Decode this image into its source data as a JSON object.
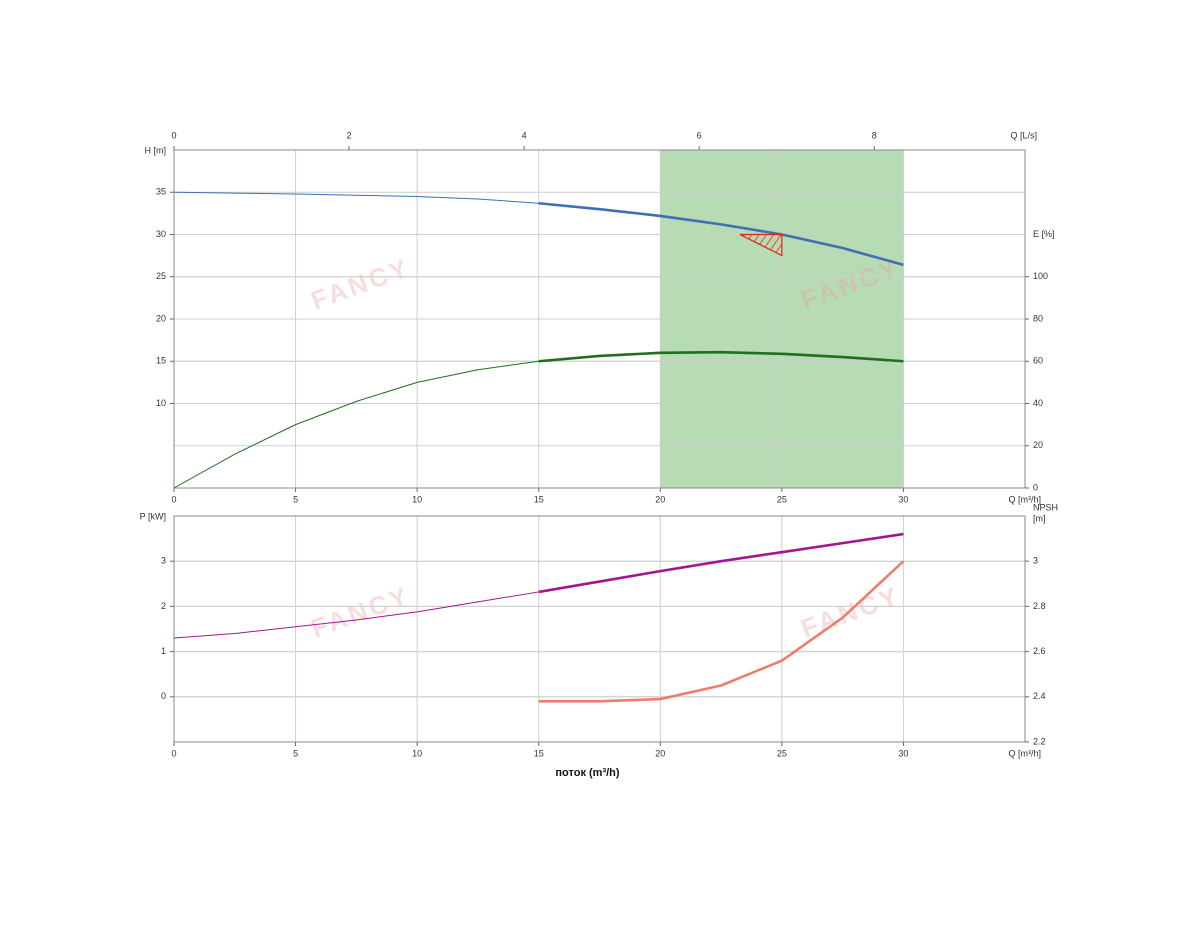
{
  "chart_data": [
    {
      "type": "line",
      "ylabel": "H [m]",
      "y2label": [
        "E [%]"
      ],
      "xunit": "Q [m³/h]",
      "x2unit": "Q [L/s]",
      "x": [
        0,
        2.5,
        5,
        7.5,
        10,
        12.5,
        15,
        17.5,
        20,
        22.5,
        25,
        27.5,
        30
      ],
      "xlim": [
        0,
        35
      ],
      "xticks": [
        0,
        5,
        10,
        15,
        20,
        25,
        30
      ],
      "x2lim": [
        0,
        9.7222
      ],
      "x2ticks": [
        0,
        2,
        4,
        6,
        8
      ],
      "ylim": [
        0,
        40
      ],
      "yticks": [
        10,
        15,
        20,
        25,
        30,
        35
      ],
      "y2lim": [
        0,
        160
      ],
      "y2ticks": [
        0,
        20,
        40,
        60,
        80,
        100
      ],
      "grid": true,
      "highlight_xrange": [
        15,
        30
      ],
      "shaded_xrange": [
        20,
        30
      ],
      "shade_color": "#b7dbb2",
      "duty_point": {
        "x": 25,
        "y": 30,
        "color": "#e0231b"
      },
      "watermark": "FANCY",
      "series": [
        {
          "color": "#3f6fb5",
          "axis": "y",
          "values": [
            35,
            34.9,
            34.8,
            34.65,
            34.5,
            34.2,
            33.7,
            33.0,
            32.2,
            31.2,
            30.0,
            28.4,
            26.4
          ]
        },
        {
          "color": "#1f6f1f",
          "axis": "y2",
          "values": [
            0,
            16,
            30,
            41,
            50,
            56,
            60,
            62.5,
            64,
            64.3,
            63.5,
            62,
            60
          ]
        }
      ]
    },
    {
      "type": "line",
      "ylabel": "P [kW]",
      "y2label": [
        "NPSH",
        "[m]"
      ],
      "xunit": "Q [m³/h]",
      "xlabel": "поток (m³/h)",
      "x": [
        0,
        2.5,
        5,
        7.5,
        10,
        12.5,
        15,
        17.5,
        20,
        22.5,
        25,
        27.5,
        30
      ],
      "xlim": [
        0,
        35
      ],
      "xticks": [
        0,
        5,
        10,
        15,
        20,
        25,
        30
      ],
      "ylim": [
        -1,
        4
      ],
      "yticks": [
        0,
        1,
        2,
        3
      ],
      "y2lim": [
        2.2,
        3.2
      ],
      "y2ticks": [
        2.2,
        2.4,
        2.6,
        2.8,
        3
      ],
      "grid": true,
      "highlight_xrange": [
        15,
        30
      ],
      "watermark": "FANCY",
      "series": [
        {
          "color": "#a3168f",
          "axis": "y",
          "values": [
            1.3,
            1.4,
            1.55,
            1.7,
            1.88,
            2.1,
            2.32,
            2.55,
            2.78,
            3.0,
            3.2,
            3.4,
            3.6
          ]
        },
        {
          "color": "#ec7f6b",
          "axis": "y2",
          "values": [
            null,
            null,
            null,
            null,
            null,
            null,
            2.38,
            2.38,
            2.39,
            2.45,
            2.56,
            2.75,
            3.0
          ]
        }
      ]
    }
  ]
}
